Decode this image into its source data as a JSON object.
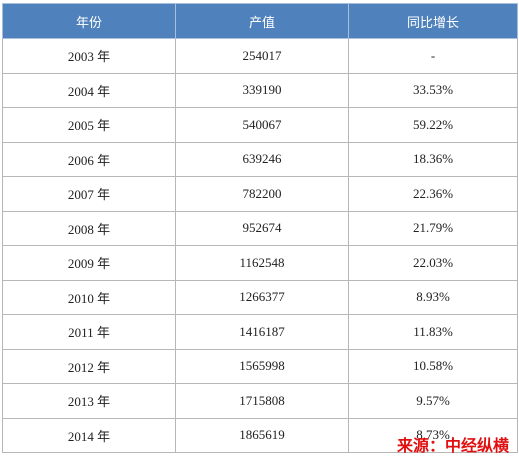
{
  "table": {
    "header": [
      "年份",
      "产值",
      "同比增长"
    ],
    "rows": [
      [
        "2003 年",
        "254017",
        "-"
      ],
      [
        "2004 年",
        "339190",
        "33.53%"
      ],
      [
        "2005 年",
        "540067",
        "59.22%"
      ],
      [
        "2006 年",
        "639246",
        "18.36%"
      ],
      [
        "2007 年",
        "782200",
        "22.36%"
      ],
      [
        "2008 年",
        "952674",
        "21.79%"
      ],
      [
        "2009 年",
        "1162548",
        "22.03%"
      ],
      [
        "2010 年",
        "1266377",
        "8.93%"
      ],
      [
        "2011 年",
        "1416187",
        "11.83%"
      ],
      [
        "2012 年",
        "1565998",
        "10.58%"
      ],
      [
        "2013 年",
        "1715808",
        "9.57%"
      ],
      [
        "2014 年",
        "1865619",
        "8.73%"
      ]
    ]
  },
  "watermark": "来源：中经纵横"
}
